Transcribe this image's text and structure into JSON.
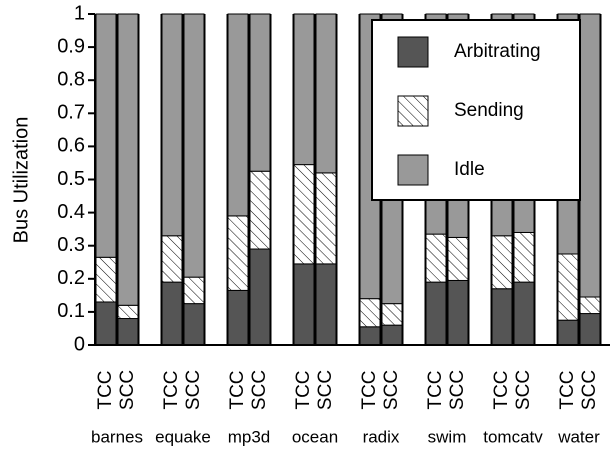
{
  "chart_data": {
    "type": "stacked-bar",
    "y_label": "Bus Utilization",
    "groups": [
      "barnes",
      "equake",
      "mp3d",
      "ocean",
      "radix",
      "swim",
      "tomcatv",
      "water"
    ],
    "bar_labels": [
      "TCC",
      "SCC"
    ],
    "series": [
      {
        "name": "Arbitrating",
        "color": "#555555",
        "values": [
          0.13,
          0.08,
          0.19,
          0.125,
          0.165,
          0.29,
          0.245,
          0.245,
          0.055,
          0.06,
          0.19,
          0.195,
          0.17,
          0.19,
          0.075,
          0.095
        ]
      },
      {
        "name": "Sending",
        "color": "hatch",
        "values": [
          0.135,
          0.04,
          0.14,
          0.08,
          0.225,
          0.235,
          0.3,
          0.275,
          0.085,
          0.065,
          0.145,
          0.13,
          0.16,
          0.15,
          0.2,
          0.05
        ]
      },
      {
        "name": "Idle",
        "color": "#999999",
        "values": [
          0.735,
          0.88,
          0.67,
          0.795,
          0.61,
          0.475,
          0.455,
          0.48,
          0.86,
          0.875,
          0.665,
          0.675,
          0.67,
          0.66,
          0.725,
          0.855
        ]
      }
    ],
    "ylim": [
      0,
      1
    ],
    "yticks": [
      0,
      0.1,
      0.2,
      0.3,
      0.4,
      0.5,
      0.6,
      0.7,
      0.8,
      0.9,
      1
    ],
    "legend": "upper right"
  }
}
